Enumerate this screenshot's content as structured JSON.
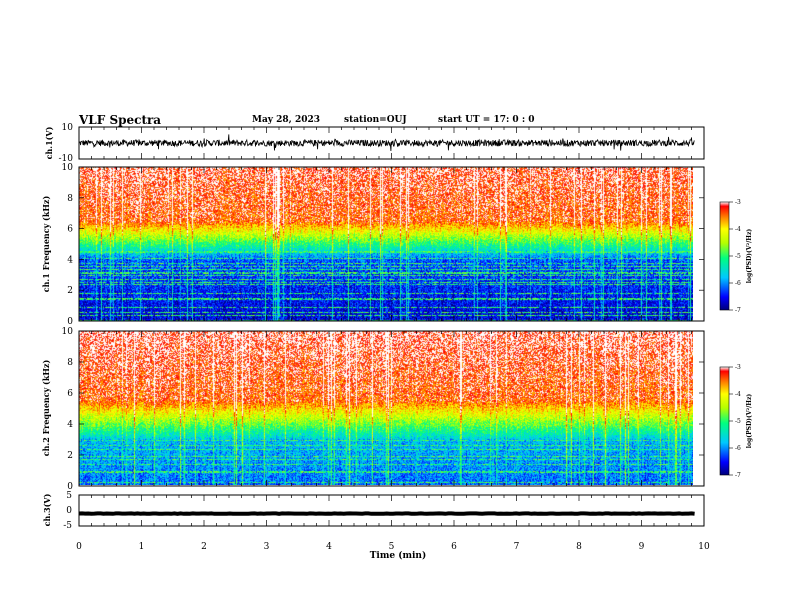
{
  "header": {
    "title": "VLF Spectra",
    "date": "May 28, 2023",
    "station": "station=OUJ",
    "start": "start  UT =   17: 0  : 0"
  },
  "chart_data": [
    {
      "type": "line",
      "name": "ch1-waveform",
      "ylabel": "ch.1(V)",
      "ylim": [
        -10,
        10
      ],
      "yticks": [
        "10",
        "-10"
      ],
      "xlim": [
        0,
        10
      ],
      "baseline": 0,
      "noise_amplitude": 2,
      "data_end_min": 9.85
    },
    {
      "type": "heatmap",
      "name": "ch1-spectrogram",
      "ylabel": "ch.1 Frequency (kHz)",
      "ylim": [
        0,
        10
      ],
      "yticks": [
        "0",
        "2",
        "4",
        "6",
        "8",
        "10"
      ],
      "xlim": [
        0,
        10
      ],
      "colorbar": {
        "label": "log(PSD)(V²/Hz)",
        "range": [
          -7,
          -3
        ],
        "ticks": [
          "-3",
          "-4",
          "-5",
          "-6",
          "-7"
        ]
      },
      "red_above_khz": 6.5,
      "blue_below_khz": 4
    },
    {
      "type": "heatmap",
      "name": "ch2-spectrogram",
      "ylabel": "ch.2 Frequency (kHz)",
      "ylim": [
        0,
        10
      ],
      "yticks": [
        "0",
        "2",
        "4",
        "6",
        "8",
        "10"
      ],
      "xlim": [
        0,
        10
      ],
      "colorbar": {
        "label": "log(PSD)(V²/Hz)",
        "range": [
          -7,
          -3
        ],
        "ticks": [
          "-3",
          "-4",
          "-5",
          "-6",
          "-7"
        ]
      },
      "red_above_khz": 5.5,
      "blue_below_khz": 3
    },
    {
      "type": "line",
      "name": "ch3-waveform",
      "ylabel": "ch.3(V)",
      "ylim": [
        -5,
        5
      ],
      "yticks": [
        "5",
        "0",
        "-5"
      ],
      "xlim": [
        0,
        10
      ],
      "baseline": -1,
      "noise_amplitude": 0.15
    }
  ],
  "xaxis": {
    "label": "Time (min)",
    "ticks": [
      "0",
      "1",
      "2",
      "3",
      "4",
      "5",
      "6",
      "7",
      "8",
      "9",
      "10"
    ]
  },
  "colors": {
    "axis": "#000000",
    "background": "#ffffff"
  }
}
